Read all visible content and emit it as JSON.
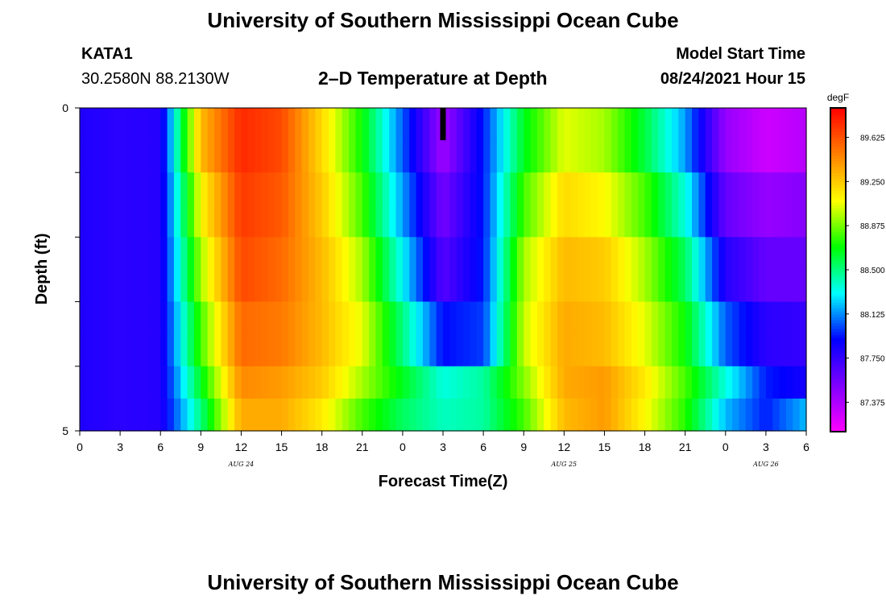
{
  "header": {
    "title": "University of Southern Mississippi Ocean Cube",
    "station": "KATA1",
    "location": "30.2580N  88.2130W",
    "subtitle": "2–D Temperature at Depth",
    "model_start_label": "Model Start Time",
    "model_start_value": "08/24/2021 Hour 15"
  },
  "footer": {
    "title": "University of Southern Mississippi Ocean Cube"
  },
  "chart_data": {
    "type": "heatmap",
    "xlabel": "Forecast Time(Z)",
    "ylabel": "Depth (ft)",
    "x_tick_labels": [
      "0",
      "3",
      "6",
      "9",
      "12",
      "15",
      "18",
      "21",
      "0",
      "3",
      "6",
      "9",
      "12",
      "15",
      "18",
      "21",
      "0",
      "3",
      "6"
    ],
    "date_labels": [
      "AUG 24",
      "AUG 25",
      "AUG 26"
    ],
    "y_tick_labels": [
      "0",
      "5"
    ],
    "ylim": [
      0,
      5
    ],
    "x_hours_range": [
      0,
      54
    ],
    "current_time_marker_hour": 27,
    "depth_rows": [
      0.25,
      0.75,
      1.25,
      1.75,
      2.25,
      2.75,
      3.25,
      3.75,
      4.25,
      4.75
    ],
    "time_hours": [
      0,
      3,
      6,
      9,
      12,
      15,
      18,
      21,
      24,
      27,
      30,
      33,
      36,
      39,
      42,
      45,
      48,
      51,
      54
    ],
    "values_degF": [
      [
        87.82,
        87.78,
        87.8,
        89.3,
        89.75,
        89.65,
        89.2,
        88.7,
        88.05,
        87.42,
        87.95,
        88.65,
        89.05,
        88.95,
        88.6,
        88.15,
        87.45,
        87.28,
        87.35
      ],
      [
        87.82,
        87.78,
        87.8,
        89.3,
        89.75,
        89.65,
        89.2,
        88.7,
        88.05,
        87.42,
        87.95,
        88.65,
        89.05,
        88.95,
        88.6,
        88.15,
        87.45,
        87.28,
        87.35
      ],
      [
        87.82,
        87.78,
        87.8,
        89.1,
        89.7,
        89.6,
        89.25,
        88.8,
        88.15,
        87.55,
        87.95,
        88.8,
        89.2,
        89.1,
        88.8,
        88.35,
        87.6,
        87.45,
        87.5
      ],
      [
        87.82,
        87.78,
        87.8,
        89.1,
        89.7,
        89.6,
        89.25,
        88.8,
        88.15,
        87.55,
        87.95,
        88.8,
        89.2,
        89.1,
        88.8,
        88.35,
        87.6,
        87.45,
        87.5
      ],
      [
        87.82,
        87.78,
        87.8,
        88.95,
        89.65,
        89.55,
        89.3,
        88.95,
        88.3,
        87.65,
        87.95,
        88.95,
        89.3,
        89.25,
        88.95,
        88.55,
        87.8,
        87.6,
        87.6
      ],
      [
        87.82,
        87.78,
        87.8,
        88.95,
        89.65,
        89.55,
        89.3,
        88.95,
        88.3,
        87.65,
        87.95,
        88.95,
        89.3,
        89.25,
        88.95,
        88.55,
        87.8,
        87.6,
        87.6
      ],
      [
        87.82,
        87.78,
        87.8,
        88.8,
        89.55,
        89.5,
        89.3,
        89.05,
        88.5,
        87.92,
        88.0,
        89.0,
        89.35,
        89.3,
        89.05,
        88.7,
        88.05,
        87.78,
        87.75
      ],
      [
        87.82,
        87.78,
        87.8,
        88.8,
        89.55,
        89.5,
        89.3,
        89.05,
        88.5,
        87.92,
        88.0,
        89.0,
        89.35,
        89.3,
        89.05,
        88.7,
        88.05,
        87.78,
        87.75
      ],
      [
        87.82,
        87.78,
        87.8,
        88.65,
        89.45,
        89.4,
        89.25,
        88.95,
        88.65,
        88.35,
        88.45,
        88.9,
        89.35,
        89.4,
        89.15,
        88.8,
        88.35,
        87.95,
        87.85
      ],
      [
        87.82,
        87.78,
        87.8,
        88.5,
        89.35,
        89.35,
        89.15,
        88.8,
        88.55,
        88.4,
        88.45,
        88.8,
        89.3,
        89.4,
        89.1,
        88.75,
        88.2,
        87.95,
        88.2
      ]
    ],
    "colorbar": {
      "unit": "degF",
      "min": 87.125,
      "max": 89.875,
      "tick_labels": [
        "89.625",
        "89.250",
        "88.875",
        "88.500",
        "88.125",
        "87.750",
        "87.375"
      ],
      "tick_values": [
        89.625,
        89.25,
        88.875,
        88.5,
        88.125,
        87.75,
        87.375
      ],
      "colors": [
        "#ff00ff",
        "#8000ff",
        "#0000ff",
        "#00ffff",
        "#00ff00",
        "#ffff00",
        "#ff8000",
        "#ff0000"
      ]
    }
  }
}
